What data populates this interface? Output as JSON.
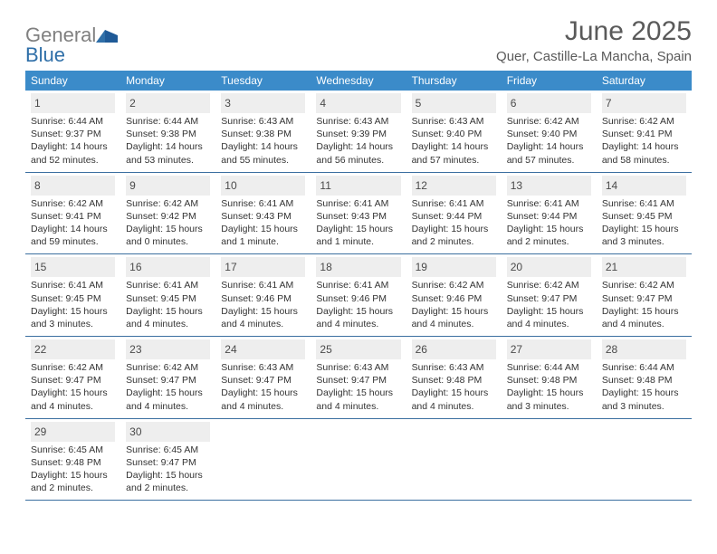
{
  "brand": {
    "part1": "General",
    "part2": "Blue"
  },
  "title": "June 2025",
  "location": "Quer, Castille-La Mancha, Spain",
  "colors": {
    "header_bg": "#3b8bc9",
    "header_text": "#ffffff",
    "daynum_bg": "#eeeeee",
    "border": "#3b6fa0",
    "brand_gray": "#808080",
    "brand_blue": "#2f6fa8"
  },
  "weekdays": [
    "Sunday",
    "Monday",
    "Tuesday",
    "Wednesday",
    "Thursday",
    "Friday",
    "Saturday"
  ],
  "weeks": [
    [
      {
        "n": "1",
        "sr": "Sunrise: 6:44 AM",
        "ss": "Sunset: 9:37 PM",
        "d1": "Daylight: 14 hours",
        "d2": "and 52 minutes."
      },
      {
        "n": "2",
        "sr": "Sunrise: 6:44 AM",
        "ss": "Sunset: 9:38 PM",
        "d1": "Daylight: 14 hours",
        "d2": "and 53 minutes."
      },
      {
        "n": "3",
        "sr": "Sunrise: 6:43 AM",
        "ss": "Sunset: 9:38 PM",
        "d1": "Daylight: 14 hours",
        "d2": "and 55 minutes."
      },
      {
        "n": "4",
        "sr": "Sunrise: 6:43 AM",
        "ss": "Sunset: 9:39 PM",
        "d1": "Daylight: 14 hours",
        "d2": "and 56 minutes."
      },
      {
        "n": "5",
        "sr": "Sunrise: 6:43 AM",
        "ss": "Sunset: 9:40 PM",
        "d1": "Daylight: 14 hours",
        "d2": "and 57 minutes."
      },
      {
        "n": "6",
        "sr": "Sunrise: 6:42 AM",
        "ss": "Sunset: 9:40 PM",
        "d1": "Daylight: 14 hours",
        "d2": "and 57 minutes."
      },
      {
        "n": "7",
        "sr": "Sunrise: 6:42 AM",
        "ss": "Sunset: 9:41 PM",
        "d1": "Daylight: 14 hours",
        "d2": "and 58 minutes."
      }
    ],
    [
      {
        "n": "8",
        "sr": "Sunrise: 6:42 AM",
        "ss": "Sunset: 9:41 PM",
        "d1": "Daylight: 14 hours",
        "d2": "and 59 minutes."
      },
      {
        "n": "9",
        "sr": "Sunrise: 6:42 AM",
        "ss": "Sunset: 9:42 PM",
        "d1": "Daylight: 15 hours",
        "d2": "and 0 minutes."
      },
      {
        "n": "10",
        "sr": "Sunrise: 6:41 AM",
        "ss": "Sunset: 9:43 PM",
        "d1": "Daylight: 15 hours",
        "d2": "and 1 minute."
      },
      {
        "n": "11",
        "sr": "Sunrise: 6:41 AM",
        "ss": "Sunset: 9:43 PM",
        "d1": "Daylight: 15 hours",
        "d2": "and 1 minute."
      },
      {
        "n": "12",
        "sr": "Sunrise: 6:41 AM",
        "ss": "Sunset: 9:44 PM",
        "d1": "Daylight: 15 hours",
        "d2": "and 2 minutes."
      },
      {
        "n": "13",
        "sr": "Sunrise: 6:41 AM",
        "ss": "Sunset: 9:44 PM",
        "d1": "Daylight: 15 hours",
        "d2": "and 2 minutes."
      },
      {
        "n": "14",
        "sr": "Sunrise: 6:41 AM",
        "ss": "Sunset: 9:45 PM",
        "d1": "Daylight: 15 hours",
        "d2": "and 3 minutes."
      }
    ],
    [
      {
        "n": "15",
        "sr": "Sunrise: 6:41 AM",
        "ss": "Sunset: 9:45 PM",
        "d1": "Daylight: 15 hours",
        "d2": "and 3 minutes."
      },
      {
        "n": "16",
        "sr": "Sunrise: 6:41 AM",
        "ss": "Sunset: 9:45 PM",
        "d1": "Daylight: 15 hours",
        "d2": "and 4 minutes."
      },
      {
        "n": "17",
        "sr": "Sunrise: 6:41 AM",
        "ss": "Sunset: 9:46 PM",
        "d1": "Daylight: 15 hours",
        "d2": "and 4 minutes."
      },
      {
        "n": "18",
        "sr": "Sunrise: 6:41 AM",
        "ss": "Sunset: 9:46 PM",
        "d1": "Daylight: 15 hours",
        "d2": "and 4 minutes."
      },
      {
        "n": "19",
        "sr": "Sunrise: 6:42 AM",
        "ss": "Sunset: 9:46 PM",
        "d1": "Daylight: 15 hours",
        "d2": "and 4 minutes."
      },
      {
        "n": "20",
        "sr": "Sunrise: 6:42 AM",
        "ss": "Sunset: 9:47 PM",
        "d1": "Daylight: 15 hours",
        "d2": "and 4 minutes."
      },
      {
        "n": "21",
        "sr": "Sunrise: 6:42 AM",
        "ss": "Sunset: 9:47 PM",
        "d1": "Daylight: 15 hours",
        "d2": "and 4 minutes."
      }
    ],
    [
      {
        "n": "22",
        "sr": "Sunrise: 6:42 AM",
        "ss": "Sunset: 9:47 PM",
        "d1": "Daylight: 15 hours",
        "d2": "and 4 minutes."
      },
      {
        "n": "23",
        "sr": "Sunrise: 6:42 AM",
        "ss": "Sunset: 9:47 PM",
        "d1": "Daylight: 15 hours",
        "d2": "and 4 minutes."
      },
      {
        "n": "24",
        "sr": "Sunrise: 6:43 AM",
        "ss": "Sunset: 9:47 PM",
        "d1": "Daylight: 15 hours",
        "d2": "and 4 minutes."
      },
      {
        "n": "25",
        "sr": "Sunrise: 6:43 AM",
        "ss": "Sunset: 9:47 PM",
        "d1": "Daylight: 15 hours",
        "d2": "and 4 minutes."
      },
      {
        "n": "26",
        "sr": "Sunrise: 6:43 AM",
        "ss": "Sunset: 9:48 PM",
        "d1": "Daylight: 15 hours",
        "d2": "and 4 minutes."
      },
      {
        "n": "27",
        "sr": "Sunrise: 6:44 AM",
        "ss": "Sunset: 9:48 PM",
        "d1": "Daylight: 15 hours",
        "d2": "and 3 minutes."
      },
      {
        "n": "28",
        "sr": "Sunrise: 6:44 AM",
        "ss": "Sunset: 9:48 PM",
        "d1": "Daylight: 15 hours",
        "d2": "and 3 minutes."
      }
    ],
    [
      {
        "n": "29",
        "sr": "Sunrise: 6:45 AM",
        "ss": "Sunset: 9:48 PM",
        "d1": "Daylight: 15 hours",
        "d2": "and 2 minutes."
      },
      {
        "n": "30",
        "sr": "Sunrise: 6:45 AM",
        "ss": "Sunset: 9:47 PM",
        "d1": "Daylight: 15 hours",
        "d2": "and 2 minutes."
      },
      null,
      null,
      null,
      null,
      null
    ]
  ]
}
